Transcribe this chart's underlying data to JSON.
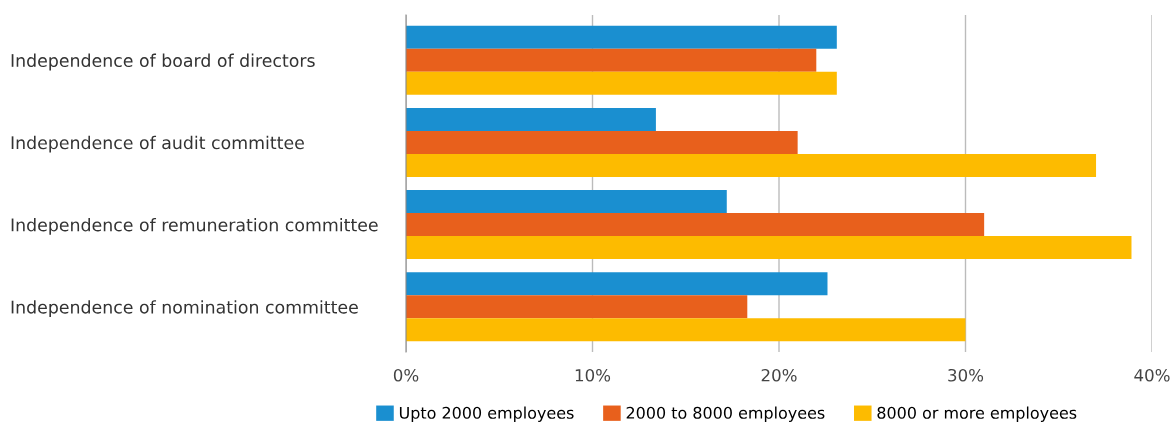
{
  "chart_data": {
    "type": "bar",
    "orientation": "horizontal",
    "categories": [
      "Independence of board of directors",
      "Independence of audit committee",
      "Independence of remuneration committee",
      "Independence of nomination committee"
    ],
    "series": [
      {
        "name": "Upto 2000 employees",
        "color": "#1a8fd0",
        "values": [
          23.1,
          13.4,
          17.2,
          22.6
        ]
      },
      {
        "name": "2000 to 8000 employees",
        "color": "#e8601c",
        "values": [
          22.0,
          21.0,
          31.0,
          18.3
        ]
      },
      {
        "name": "8000 or more employees",
        "color": "#fdbb00",
        "values": [
          23.1,
          37.0,
          38.9,
          30.0
        ]
      }
    ],
    "xlim": [
      0,
      40
    ],
    "xticks": [
      {
        "value": 0,
        "label": "0%"
      },
      {
        "value": 10,
        "label": "10%"
      },
      {
        "value": 20,
        "label": "20%"
      },
      {
        "value": 30,
        "label": "30%"
      },
      {
        "value": 40,
        "label": "40%"
      }
    ],
    "grid": "x",
    "legend": "bottom"
  }
}
